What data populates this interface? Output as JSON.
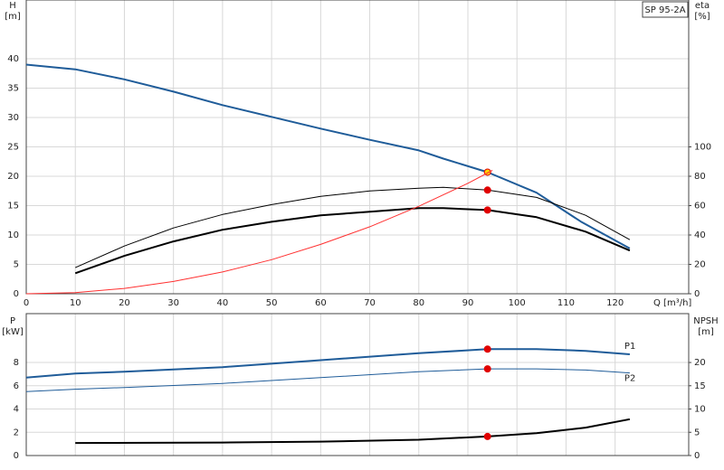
{
  "chart_data": [
    {
      "type": "line",
      "title": "SP 95-2A",
      "ylabel": "H",
      "yunit": "[m]",
      "y2label": "eta",
      "y2unit": "[%]",
      "xlabel": "Q [m³/h]",
      "xlim": [
        0,
        135
      ],
      "xticks": [
        0,
        10,
        20,
        30,
        40,
        50,
        60,
        70,
        80,
        90,
        100,
        110,
        120
      ],
      "xtick_labels": true,
      "ylim": [
        0,
        50
      ],
      "yticks": [
        0,
        5,
        10,
        15,
        20,
        25,
        30,
        35,
        40
      ],
      "y2lim": [
        0,
        200
      ],
      "y2ticks": [
        0,
        20,
        40,
        60,
        80,
        100
      ],
      "grid": true,
      "duty_x": 94,
      "series": [
        {
          "color": "#1f5c99",
          "width": 2,
          "x": [
            0,
            10,
            20,
            30,
            40,
            50,
            60,
            70,
            80,
            85,
            94,
            104,
            113,
            123
          ],
          "values": [
            39,
            38.2,
            36.5,
            34.4,
            32.1,
            30.1,
            28.1,
            26.2,
            24.4,
            23,
            20.7,
            17.2,
            12.3,
            7.7
          ],
          "duty": 20.7,
          "duty_color": "#ffd400"
        },
        {
          "color": "#000000",
          "width": 1,
          "axis": "y2",
          "x": [
            10,
            20,
            30,
            40,
            50,
            60,
            70,
            80,
            85,
            94,
            104,
            114,
            123
          ],
          "values": [
            17.8,
            32.5,
            44.8,
            54,
            60.7,
            66.3,
            70,
            71.8,
            72.4,
            70.6,
            65.6,
            53.4,
            36.8
          ],
          "duty": 70.6,
          "duty_color": "#e00000"
        },
        {
          "color": "#000000",
          "width": 2,
          "axis": "y2",
          "x": [
            10,
            20,
            30,
            40,
            50,
            60,
            70,
            80,
            85,
            94,
            104,
            114,
            123
          ],
          "values": [
            14,
            25.8,
            35.6,
            43.6,
            49,
            53.4,
            55.8,
            58.3,
            58.3,
            57,
            52.1,
            42.3,
            29.4
          ],
          "duty": 57,
          "duty_color": "#e00000"
        },
        {
          "color": "#ff3030",
          "width": 1,
          "x": [
            0,
            10,
            20,
            30,
            40,
            50,
            60,
            70,
            80,
            90,
            95
          ],
          "values": [
            0,
            0.2,
            0.9,
            2.1,
            3.7,
            5.8,
            8.4,
            11.4,
            14.9,
            18.8,
            21
          ]
        }
      ]
    },
    {
      "type": "line",
      "ylabel": "P",
      "yunit": "[kW]",
      "y2label": "NPSH",
      "y2unit": "[m]",
      "xlim": [
        0,
        135
      ],
      "xticks": [
        0,
        10,
        20,
        30,
        40,
        50,
        60,
        70,
        80,
        90,
        100,
        110,
        120
      ],
      "xtick_labels": false,
      "ylim": [
        0,
        12.2
      ],
      "yticks": [
        0,
        2,
        4,
        6,
        8
      ],
      "y2lim": [
        0,
        30.5
      ],
      "y2ticks": [
        0,
        5,
        10,
        15,
        20
      ],
      "grid": true,
      "duty_x": 94,
      "series": [
        {
          "name": "P1",
          "color": "#1f5c99",
          "width": 2,
          "x": [
            0,
            10,
            20,
            40,
            60,
            80,
            94,
            104,
            114,
            123
          ],
          "values": [
            6.7,
            7.05,
            7.2,
            7.6,
            8.2,
            8.8,
            9.15,
            9.15,
            9.0,
            8.7
          ],
          "duty": 9.15,
          "duty_color": "#e00000"
        },
        {
          "name": "P2",
          "color": "#1f5c99",
          "width": 1,
          "x": [
            0,
            10,
            20,
            40,
            60,
            80,
            94,
            104,
            114,
            123
          ],
          "values": [
            5.5,
            5.7,
            5.85,
            6.2,
            6.7,
            7.2,
            7.45,
            7.45,
            7.35,
            7.1
          ],
          "duty": 7.45,
          "duty_color": "#e00000"
        },
        {
          "color": "#000000",
          "width": 2,
          "axis": "y2",
          "x": [
            10,
            40,
            60,
            80,
            94,
            104,
            114,
            123
          ],
          "values": [
            2.7,
            2.8,
            3.0,
            3.4,
            4.1,
            4.8,
            6.0,
            7.8
          ],
          "duty": 4.1,
          "duty_color": "#e00000"
        }
      ]
    }
  ]
}
